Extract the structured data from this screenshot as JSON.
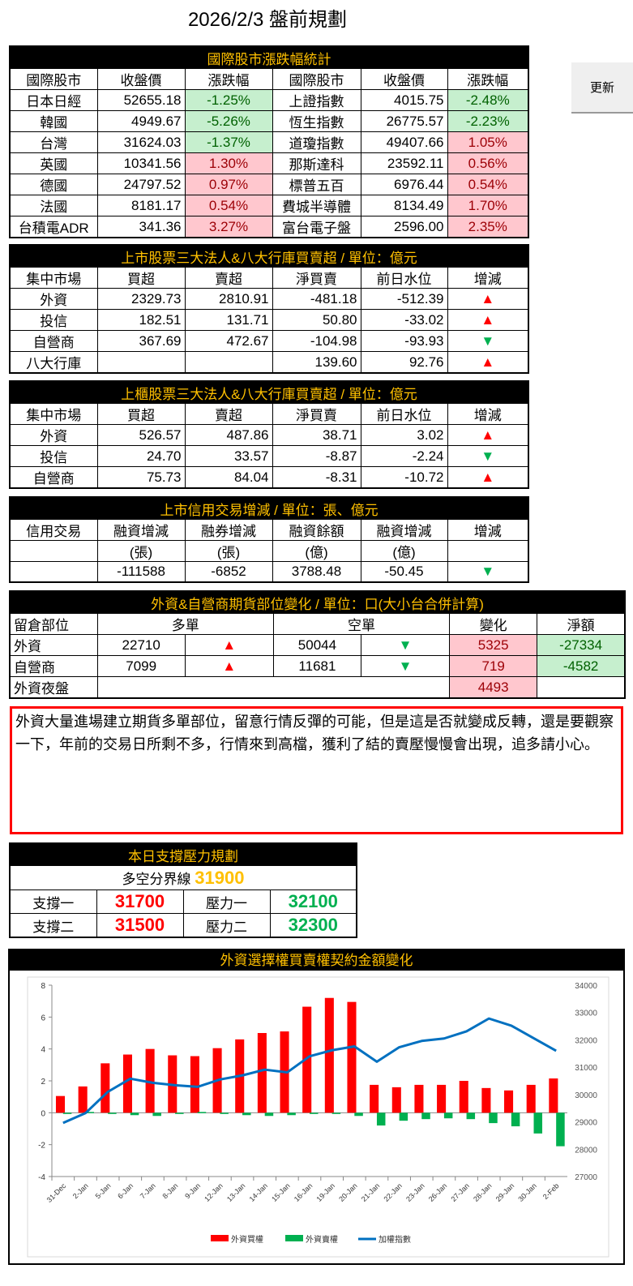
{
  "title": "2026/2/3 盤前規劃",
  "update_label": "更新",
  "intl": {
    "caption": "國際股市漲跌幅統計",
    "headers": [
      "國際股市",
      "收盤價",
      "漲跌幅",
      "國際股市",
      "收盤價",
      "漲跌幅"
    ],
    "rows": [
      {
        "n1": "日本日經",
        "p1": "52655.18",
        "c1": "-1.25%",
        "s1": "g",
        "n2": "上證指數",
        "p2": "4015.75",
        "c2": "-2.48%",
        "s2": "g"
      },
      {
        "n1": "韓國",
        "p1": "4949.67",
        "c1": "-5.26%",
        "s1": "g",
        "n2": "恆生指數",
        "p2": "26775.57",
        "c2": "-2.23%",
        "s2": "g"
      },
      {
        "n1": "台灣",
        "p1": "31624.03",
        "c1": "-1.37%",
        "s1": "g",
        "n2": "道瓊指數",
        "p2": "49407.66",
        "c2": "1.05%",
        "s2": "r"
      },
      {
        "n1": "英國",
        "p1": "10341.56",
        "c1": "1.30%",
        "s1": "r",
        "n2": "那斯達科",
        "p2": "23592.11",
        "c2": "0.56%",
        "s2": "r"
      },
      {
        "n1": "德國",
        "p1": "24797.52",
        "c1": "0.97%",
        "s1": "r",
        "n2": "標普五百",
        "p2": "6976.44",
        "c2": "0.54%",
        "s2": "r"
      },
      {
        "n1": "法國",
        "p1": "8181.17",
        "c1": "0.54%",
        "s1": "r",
        "n2": "費城半導體",
        "p2": "8134.49",
        "c2": "1.70%",
        "s2": "r"
      },
      {
        "n1": "台積電ADR",
        "p1": "341.36",
        "c1": "3.27%",
        "s1": "r",
        "n2": "富台電子盤",
        "p2": "2596.00",
        "c2": "2.35%",
        "s2": "r"
      }
    ]
  },
  "listed": {
    "caption": "上市股票三大法人&八大行庫買賣超 / 單位：億元",
    "headers": [
      "集中市場",
      "買超",
      "賣超",
      "淨買賣",
      "前日水位",
      "增減"
    ],
    "rows": [
      {
        "name": "外資",
        "buy": "2329.73",
        "sell": "2810.91",
        "net": "-481.18",
        "prev": "-512.39",
        "dir": "▲"
      },
      {
        "name": "投信",
        "buy": "182.51",
        "sell": "131.71",
        "net": "50.80",
        "prev": "-33.02",
        "dir": "▲"
      },
      {
        "name": "自營商",
        "buy": "367.69",
        "sell": "472.67",
        "net": "-104.98",
        "prev": "-93.93",
        "dir": "▼"
      },
      {
        "name": "八大行庫",
        "buy": "",
        "sell": "",
        "net": "139.60",
        "prev": "92.76",
        "dir": "▲"
      }
    ]
  },
  "otc": {
    "caption": "上櫃股票三大法人&八大行庫買賣超 / 單位：億元",
    "headers": [
      "集中市場",
      "買超",
      "賣超",
      "淨買賣",
      "前日水位",
      "增減"
    ],
    "rows": [
      {
        "name": "外資",
        "buy": "526.57",
        "sell": "487.86",
        "net": "38.71",
        "prev": "3.02",
        "dir": "▲"
      },
      {
        "name": "投信",
        "buy": "24.70",
        "sell": "33.57",
        "net": "-8.87",
        "prev": "-2.24",
        "dir": "▼"
      },
      {
        "name": "自營商",
        "buy": "75.73",
        "sell": "84.04",
        "net": "-8.31",
        "prev": "-10.72",
        "dir": "▲"
      }
    ]
  },
  "margin": {
    "caption": "上市信用交易增減 / 單位：張、億元",
    "headers": [
      "信用交易",
      "融資增減",
      "融券增減",
      "融資餘額",
      "融資增減",
      "增減"
    ],
    "units": [
      "",
      "(張)",
      "(張)",
      "(億)",
      "(億)",
      ""
    ],
    "values": [
      "",
      "-111588",
      "-6852",
      "3788.48",
      "-50.45",
      "▼"
    ]
  },
  "futures": {
    "caption": "外資&自營商期貨部位變化 / 單位：口(大小台合併計算)",
    "headers": [
      "留倉部位",
      "多單",
      "空單",
      "變化",
      "淨額"
    ],
    "rows": [
      {
        "name": "外資",
        "long": "22710",
        "ldir": "▲",
        "short": "50044",
        "sdir": "▼",
        "chg": "5325",
        "net": "-27334"
      },
      {
        "name": "自營商",
        "long": "7099",
        "ldir": "▲",
        "short": "11681",
        "sdir": "▼",
        "chg": "719",
        "net": "-4582"
      },
      {
        "name": "外資夜盤",
        "long": "",
        "ldir": "",
        "short": "",
        "sdir": "",
        "chg": "4493",
        "net": ""
      }
    ]
  },
  "comment": "外資大量進場建立期貨多單部位，留意行情反彈的可能，但是這是否就變成反轉，還是要觀察一下，年前的交易日所剩不多，行情來到高檔，獲利了結的賣壓慢慢會出現，追多請小心。",
  "levels": {
    "caption": "本日支撐壓力規劃",
    "pivot_label": "多空分界線",
    "pivot": "31900",
    "s1_label": "支撐一",
    "s1": "31700",
    "r1_label": "壓力一",
    "r1": "32100",
    "s2_label": "支撐二",
    "s2": "31500",
    "r2_label": "壓力二",
    "r2": "32300"
  },
  "chart_data": {
    "type": "bar",
    "title": "外資選擇權買賣權契約金額變化",
    "categories": [
      "31-Dec",
      "2-Jan",
      "5-Jan",
      "6-Jan",
      "7-Jan",
      "8-Jan",
      "9-Jan",
      "12-Jan",
      "13-Jan",
      "14-Jan",
      "15-Jan",
      "16-Jan",
      "19-Jan",
      "20-Jan",
      "21-Jan",
      "22-Jan",
      "23-Jan",
      "26-Jan",
      "27-Jan",
      "28-Jan",
      "29-Jan",
      "30-Jan",
      "2-Feb"
    ],
    "ylim": [
      -4,
      8
    ],
    "yticks": [
      8,
      6,
      4,
      2,
      0,
      -2,
      -4
    ],
    "y2lim": [
      27000,
      34000
    ],
    "y2ticks": [
      34000,
      33000,
      32000,
      31000,
      30000,
      29000,
      28000,
      27000
    ],
    "legend_position": "bottom",
    "series": [
      {
        "name": "外資買權",
        "type": "bar",
        "axis": "left",
        "color": "#ff0000",
        "values": [
          1.05,
          1.65,
          3.1,
          3.65,
          4.0,
          3.6,
          3.55,
          4.05,
          4.6,
          5.0,
          5.1,
          6.65,
          7.2,
          6.95,
          1.75,
          1.6,
          1.75,
          1.75,
          2.0,
          1.55,
          1.4,
          1.75,
          2.15
        ]
      },
      {
        "name": "外資賣權",
        "type": "bar",
        "axis": "left",
        "color": "#00b050",
        "values": [
          -0.05,
          0.05,
          -0.05,
          -0.15,
          -0.2,
          -0.05,
          0.05,
          -0.05,
          -0.15,
          -0.2,
          -0.15,
          -0.05,
          -0.05,
          -0.2,
          -0.8,
          -0.5,
          -0.4,
          -0.35,
          -0.4,
          -0.65,
          -0.85,
          -1.3,
          -2.1
        ]
      },
      {
        "name": "加權指數",
        "type": "line",
        "axis": "right",
        "color": "#0070c0",
        "values": [
          28960,
          29320,
          30100,
          30580,
          30430,
          30340,
          30280,
          30550,
          30700,
          30910,
          30810,
          31400,
          31620,
          31760,
          31200,
          31730,
          31960,
          32050,
          32310,
          32780,
          32520,
          32060,
          31600
        ]
      }
    ]
  }
}
